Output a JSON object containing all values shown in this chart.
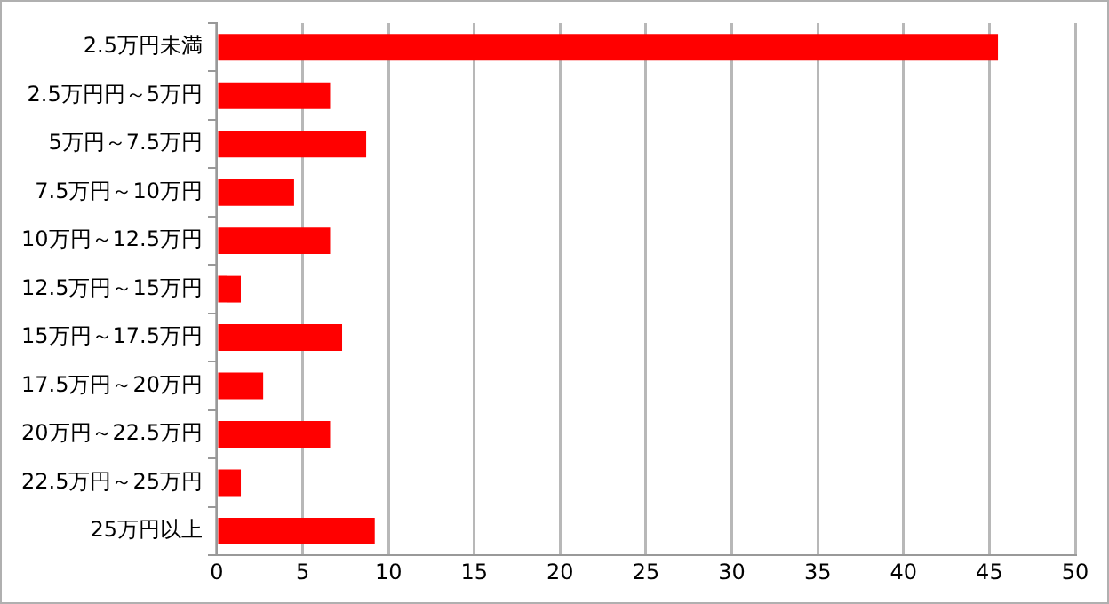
{
  "chart_data": {
    "type": "bar",
    "orientation": "horizontal",
    "categories": [
      "2.5万円未満",
      "2.5万円円～5万円",
      "5万円～7.5万円",
      "7.5万円～10万円",
      "10万円～12.5万円",
      "12.5万円～15万円",
      "15万円～17.5万円",
      "17.5万円～20万円",
      "20万円～22.5万円",
      "22.5万円～25万円",
      "25万円以上"
    ],
    "values": [
      45.5,
      6.6,
      8.7,
      4.5,
      6.6,
      1.4,
      7.3,
      2.7,
      6.6,
      1.4,
      9.2
    ],
    "color": "#ff0000",
    "xlim": [
      0,
      50
    ],
    "xticks": [
      0,
      5,
      10,
      15,
      20,
      25,
      30,
      35,
      40,
      45,
      50
    ],
    "grid": "x",
    "legend": false
  }
}
